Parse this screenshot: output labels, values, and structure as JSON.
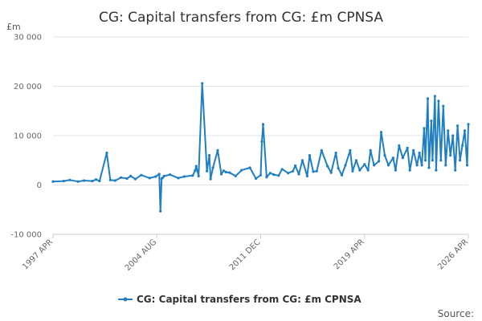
{
  "chart_data": {
    "type": "line",
    "title": "CG: Capital transfers from CG: £m CPNSA",
    "ylabel": "£m",
    "ylim": [
      -10000,
      30000
    ],
    "yticks": [
      {
        "value": 30000,
        "label": "30 000"
      },
      {
        "value": 20000,
        "label": "20 000"
      },
      {
        "value": 10000,
        "label": "10 000"
      },
      {
        "value": 0,
        "label": "0"
      },
      {
        "value": -10000,
        "label": "-10 000"
      }
    ],
    "xrange": [
      "1997-04",
      "2026-04"
    ],
    "xticks": [
      "1997 APR",
      "2004 AUG",
      "2011 DEC",
      "2019 APR",
      "2026 APR"
    ],
    "grid": "horizontal",
    "legend_position": "bottom",
    "series": [
      {
        "name": "CG: Capital transfers from CG: £m CPNSA",
        "color": "#1f7fc0",
        "x": [
          "1997-04",
          "1998-01",
          "1998-06",
          "1999-01",
          "1999-06",
          "2000-01",
          "2000-04",
          "2000-07",
          "2001-01",
          "2001-04",
          "2001-08",
          "2002-01",
          "2002-06",
          "2002-09",
          "2003-01",
          "2003-06",
          "2004-01",
          "2004-06",
          "2004-09",
          "2004-10",
          "2004-11",
          "2004-12",
          "2005-01",
          "2005-06",
          "2006-01",
          "2006-06",
          "2007-01",
          "2007-03",
          "2007-04",
          "2007-06",
          "2007-09",
          "2008-01",
          "2008-03",
          "2008-04",
          "2008-06",
          "2008-10",
          "2009-01",
          "2009-03",
          "2009-05",
          "2009-08",
          "2010-01",
          "2010-06",
          "2011-01",
          "2011-06",
          "2011-10",
          "2011-11",
          "2011-12",
          "2012-03",
          "2012-06",
          "2012-09",
          "2013-01",
          "2013-04",
          "2013-09",
          "2014-01",
          "2014-03",
          "2014-06",
          "2014-09",
          "2015-01",
          "2015-03",
          "2015-06",
          "2015-09",
          "2016-01",
          "2016-06",
          "2016-09",
          "2017-01",
          "2017-03",
          "2017-06",
          "2017-09",
          "2018-01",
          "2018-03",
          "2018-06",
          "2018-09",
          "2019-01",
          "2019-04",
          "2019-06",
          "2019-09",
          "2020-01",
          "2020-03",
          "2020-06",
          "2020-09",
          "2021-01",
          "2021-03",
          "2021-06",
          "2021-09",
          "2022-01",
          "2022-03",
          "2022-06",
          "2022-09",
          "2022-11",
          "2023-01",
          "2023-03",
          "2023-04",
          "2023-06",
          "2023-07",
          "2023-09",
          "2023-10",
          "2023-12",
          "2024-01",
          "2024-03",
          "2024-05",
          "2024-07",
          "2024-09",
          "2024-11",
          "2025-01",
          "2025-03",
          "2025-05",
          "2025-07",
          "2025-09",
          "2025-11",
          "2026-01",
          "2026-03",
          "2026-04"
        ],
        "values": [
          700,
          800,
          1000,
          700,
          900,
          800,
          1100,
          800,
          6500,
          1000,
          900,
          1500,
          1300,
          1800,
          1200,
          2000,
          1400,
          1700,
          2200,
          -5300,
          1300,
          1500,
          1800,
          2100,
          1400,
          1700,
          1900,
          2900,
          3800,
          1800,
          20600,
          2800,
          6000,
          1200,
          3500,
          7000,
          2200,
          2900,
          2600,
          2500,
          1800,
          3000,
          3500,
          1300,
          2000,
          8800,
          12300,
          1600,
          2400,
          2100,
          1900,
          3200,
          2400,
          2800,
          3900,
          2200,
          5000,
          1800,
          6000,
          2700,
          2800,
          7000,
          3800,
          2500,
          6500,
          3400,
          2000,
          4000,
          7000,
          2800,
          5000,
          3000,
          4200,
          3000,
          7000,
          4000,
          4800,
          10700,
          6000,
          4000,
          5500,
          3000,
          8000,
          5500,
          7500,
          3000,
          7000,
          4000,
          6500,
          4000,
          11500,
          5000,
          17500,
          3500,
          13000,
          5000,
          18000,
          3000,
          17000,
          5000,
          16000,
          4000,
          11000,
          6000,
          10000,
          3000,
          12000,
          5000,
          8000,
          11000,
          4000,
          12300
        ]
      }
    ]
  },
  "legend": {
    "label": "CG: Capital transfers from CG: £m CPNSA"
  },
  "footer": {
    "source": "Source:"
  }
}
